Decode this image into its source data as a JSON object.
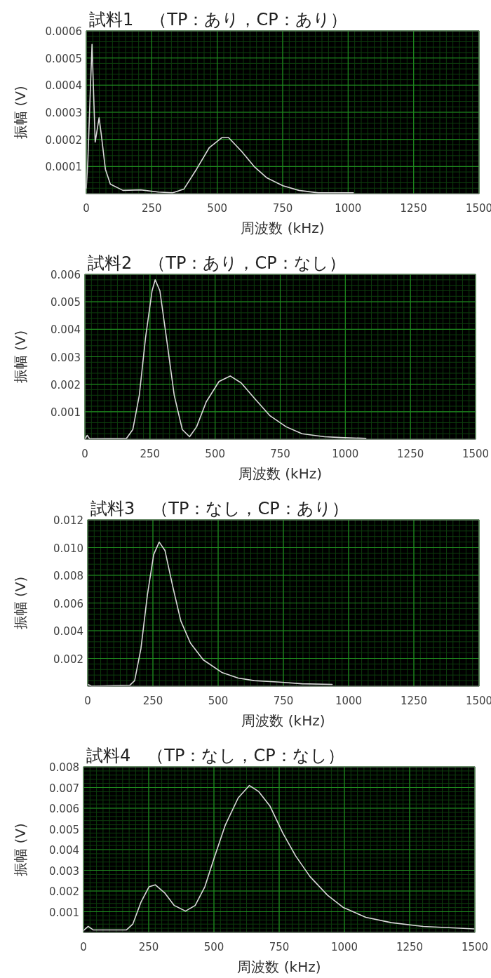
{
  "chart_data": [
    {
      "type": "line",
      "title": "試料1　（TP：あり，CP：あり）",
      "xlabel": "周波数 (kHz)",
      "ylabel": "振幅 (V)",
      "xlim": [
        0,
        1500
      ],
      "xticks": [
        0,
        250,
        500,
        750,
        1000,
        1250,
        1500
      ],
      "ylim": [
        0,
        0.0006
      ],
      "yticks": [
        0.0001,
        0.0002,
        0.0003,
        0.0004,
        0.0005,
        0.0006
      ],
      "grid": true,
      "color": "#d9d9d9",
      "x": [
        0,
        6,
        15,
        22,
        26,
        34,
        49,
        57,
        73,
        92,
        140,
        208,
        275,
        330,
        373,
        421,
        470,
        519,
        543,
        592,
        641,
        690,
        751,
        812,
        886,
        1020
      ],
      "values": [
        2e-05,
        0.00012,
        0.00037,
        0.00055,
        0.00043,
        0.00019,
        0.00028,
        0.00022,
        9e-05,
        3.5e-05,
        1.2e-05,
        1.4e-05,
        6e-06,
        3e-06,
        1.7e-05,
        9e-05,
        0.00017,
        0.000207,
        0.000207,
        0.000157,
        0.0001,
        5.8e-05,
        2.9e-05,
        1.2e-05,
        3e-06,
        3e-06
      ]
    },
    {
      "type": "line",
      "title": "試料2　（TP：あり，CP：なし）",
      "xlabel": "周波数 (kHz)",
      "ylabel": "振幅 (V)",
      "xlim": [
        0,
        1500
      ],
      "xticks": [
        0,
        250,
        500,
        750,
        1000,
        1250,
        1500
      ],
      "ylim": [
        0,
        0.006
      ],
      "yticks": [
        0.001,
        0.002,
        0.003,
        0.004,
        0.005,
        0.006
      ],
      "grid": true,
      "color": "#d9d9d9",
      "x": [
        0,
        9,
        18,
        160,
        184,
        209,
        233,
        258,
        270,
        288,
        313,
        343,
        374,
        402,
        429,
        466,
        515,
        558,
        600,
        650,
        711,
        773,
        834,
        920,
        981,
        1079
      ],
      "values": [
        0,
        0.00014,
        2e-05,
        3e-05,
        0.00035,
        0.0016,
        0.0037,
        0.0054,
        0.0058,
        0.0054,
        0.0037,
        0.0016,
        0.00035,
        9e-05,
        0.00045,
        0.00136,
        0.0021,
        0.0023,
        0.00205,
        0.0015,
        0.00085,
        0.00045,
        0.0002,
        9e-05,
        6e-05,
        3e-05
      ]
    },
    {
      "type": "line",
      "title": "試料3　（TP：なし，CP：あり）",
      "xlabel": "周波数 (kHz)",
      "ylabel": "振幅 (V)",
      "xlim": [
        0,
        1500
      ],
      "xticks": [
        0,
        250,
        500,
        750,
        1000,
        1250,
        1500
      ],
      "ylim": [
        0,
        0.012
      ],
      "yticks": [
        0.002,
        0.004,
        0.006,
        0.008,
        {
          "value": 0.01,
          "label": "0.010"
        },
        0.012
      ],
      "grid": true,
      "color": "#d9d9d9",
      "x": [
        2,
        15,
        161,
        180,
        204,
        229,
        253,
        274,
        296,
        326,
        357,
        394,
        443,
        516,
        577,
        638,
        736,
        821,
        937
      ],
      "values": [
        0.00012,
        0,
        6e-05,
        0.0004,
        0.0027,
        0.0066,
        0.0095,
        0.0104,
        0.0098,
        0.0072,
        0.0047,
        0.0031,
        0.0019,
        0.00097,
        0.00058,
        0.0004,
        0.00029,
        0.00017,
        0.00013
      ]
    },
    {
      "type": "line",
      "title": "試料4　（TP：なし，CP：なし）",
      "xlabel": "周波数 (kHz)",
      "ylabel": "振幅 (V)",
      "xlim": [
        0,
        1500
      ],
      "xticks": [
        0,
        250,
        500,
        750,
        1000,
        1250,
        1500
      ],
      "ylim": [
        0,
        0.008
      ],
      "yticks": [
        0.001,
        0.002,
        0.003,
        0.004,
        0.005,
        0.006,
        0.007,
        0.008
      ],
      "grid": true,
      "color": "#d9d9d9",
      "x": [
        0,
        18,
        37,
        165,
        189,
        220,
        251,
        275,
        312,
        348,
        391,
        428,
        465,
        501,
        544,
        593,
        636,
        672,
        715,
        764,
        813,
        868,
        935,
        996,
        1082,
        1180,
        1302,
        1497
      ],
      "values": [
        9e-05,
        0.00029,
        0.00012,
        0.00012,
        0.0004,
        0.00145,
        0.0022,
        0.0023,
        0.0019,
        0.0013,
        0.00103,
        0.0013,
        0.0022,
        0.0036,
        0.0052,
        0.0065,
        0.0071,
        0.0068,
        0.0061,
        0.0048,
        0.0037,
        0.0027,
        0.0018,
        0.0012,
        0.00073,
        0.00047,
        0.00029,
        0.00017
      ]
    }
  ]
}
